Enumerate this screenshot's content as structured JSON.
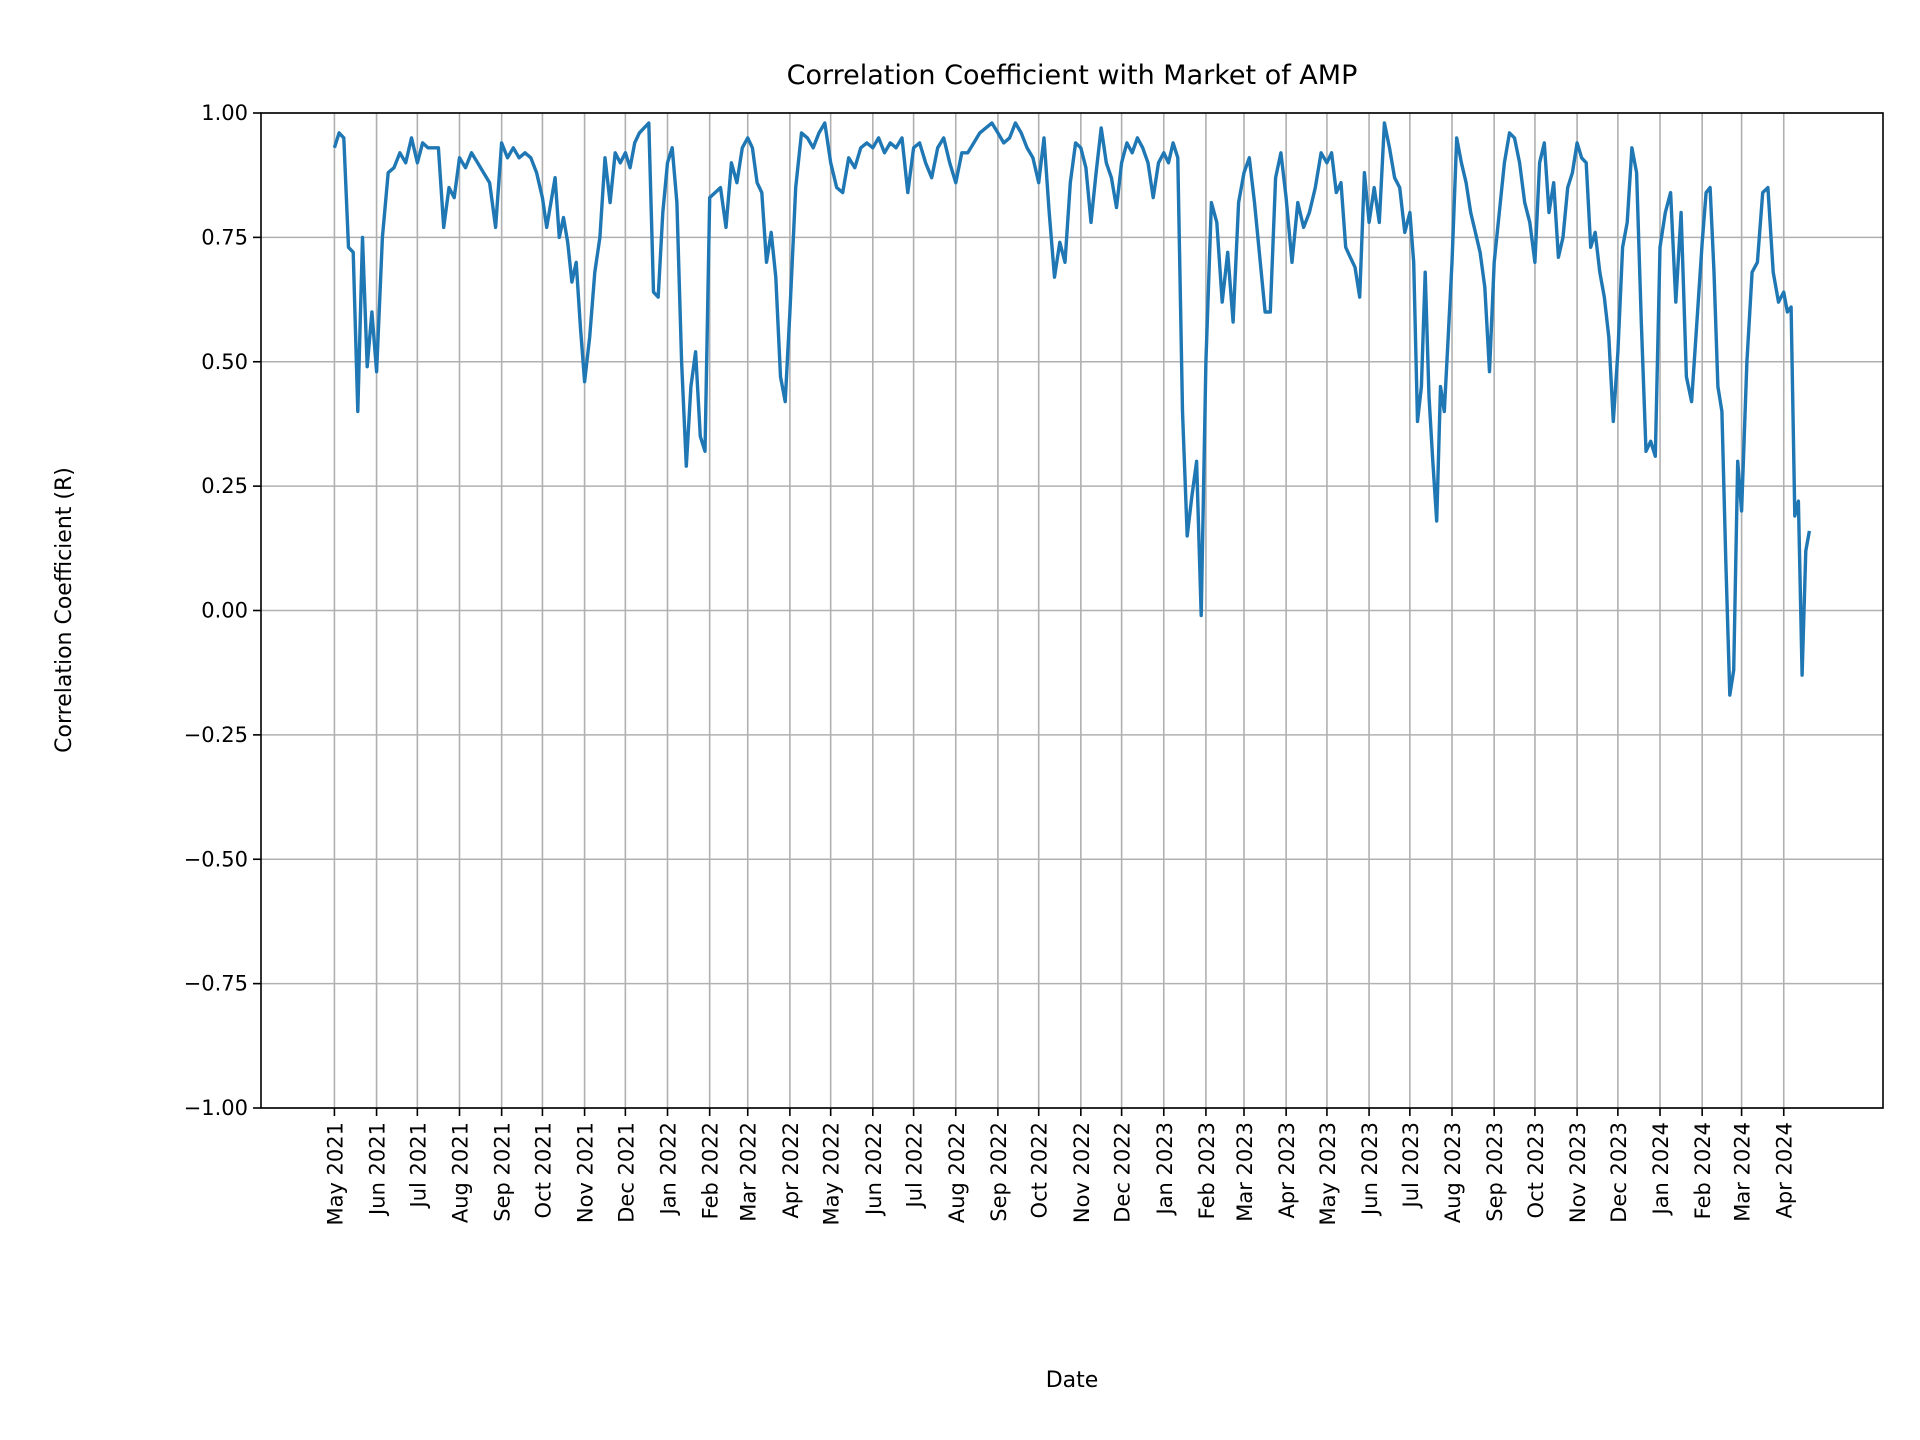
{
  "chart_data": {
    "type": "line",
    "title": "Correlation Coefficient with Market of AMP",
    "xlabel": "Date",
    "ylabel": "Correlation Coefficient (R)",
    "ylim": [
      -1.0,
      1.0
    ],
    "xlim": [
      "2021-03-08",
      "2024-06-13"
    ],
    "grid": true,
    "line_color": "#1f77b4",
    "yticks": [
      "1.00",
      "0.75",
      "0.50",
      "0.25",
      "0.00",
      "−0.25",
      "−0.50",
      "−0.75",
      "−1.00"
    ],
    "ytick_values": [
      1.0,
      0.75,
      0.5,
      0.25,
      0.0,
      -0.25,
      -0.5,
      -0.75,
      -1.0
    ],
    "xticks": [
      {
        "date": "2021-05-01",
        "label": "May 2021"
      },
      {
        "date": "2021-06-01",
        "label": "Jun 2021"
      },
      {
        "date": "2021-07-01",
        "label": "Jul 2021"
      },
      {
        "date": "2021-08-01",
        "label": "Aug 2021"
      },
      {
        "date": "2021-09-01",
        "label": "Sep 2021"
      },
      {
        "date": "2021-10-01",
        "label": "Oct 2021"
      },
      {
        "date": "2021-11-01",
        "label": "Nov 2021"
      },
      {
        "date": "2021-12-01",
        "label": "Dec 2021"
      },
      {
        "date": "2022-01-01",
        "label": "Jan 2022"
      },
      {
        "date": "2022-02-01",
        "label": "Feb 2022"
      },
      {
        "date": "2022-03-01",
        "label": "Mar 2022"
      },
      {
        "date": "2022-04-01",
        "label": "Apr 2022"
      },
      {
        "date": "2022-05-01",
        "label": "May 2022"
      },
      {
        "date": "2022-06-01",
        "label": "Jun 2022"
      },
      {
        "date": "2022-07-01",
        "label": "Jul 2022"
      },
      {
        "date": "2022-08-01",
        "label": "Aug 2022"
      },
      {
        "date": "2022-09-01",
        "label": "Sep 2022"
      },
      {
        "date": "2022-10-01",
        "label": "Oct 2022"
      },
      {
        "date": "2022-11-01",
        "label": "Nov 2022"
      },
      {
        "date": "2022-12-01",
        "label": "Dec 2022"
      },
      {
        "date": "2023-01-01",
        "label": "Jan 2023"
      },
      {
        "date": "2023-02-01",
        "label": "Feb 2023"
      },
      {
        "date": "2023-03-01",
        "label": "Mar 2023"
      },
      {
        "date": "2023-04-01",
        "label": "Apr 2023"
      },
      {
        "date": "2023-05-01",
        "label": "May 2023"
      },
      {
        "date": "2023-06-01",
        "label": "Jun 2023"
      },
      {
        "date": "2023-07-01",
        "label": "Jul 2023"
      },
      {
        "date": "2023-08-01",
        "label": "Aug 2023"
      },
      {
        "date": "2023-09-01",
        "label": "Sep 2023"
      },
      {
        "date": "2023-10-01",
        "label": "Oct 2023"
      },
      {
        "date": "2023-11-01",
        "label": "Nov 2023"
      },
      {
        "date": "2023-12-01",
        "label": "Dec 2023"
      },
      {
        "date": "2024-01-01",
        "label": "Jan 2024"
      },
      {
        "date": "2024-02-01",
        "label": "Feb 2024"
      },
      {
        "date": "2024-03-01",
        "label": "Mar 2024"
      },
      {
        "date": "2024-04-01",
        "label": "Apr 2024"
      }
    ],
    "values_by_month": {
      "2021-05": [
        0.93,
        0.96,
        0.95,
        0.73,
        0.72,
        0.4,
        0.75,
        0.49,
        0.6
      ],
      "2021-06": [
        0.48,
        0.75,
        0.88,
        0.89,
        0.92,
        0.9,
        0.95
      ],
      "2021-07": [
        0.9,
        0.94,
        0.93,
        0.93,
        0.93,
        0.77,
        0.85,
        0.83
      ],
      "2021-08": [
        0.91,
        0.89,
        0.92,
        0.9,
        0.88,
        0.86,
        0.77
      ],
      "2021-09": [
        0.94,
        0.91,
        0.93,
        0.91,
        0.92,
        0.91,
        0.88
      ],
      "2021-10": [
        0.83,
        0.77,
        0.82,
        0.87,
        0.75,
        0.79,
        0.74,
        0.66,
        0.7,
        0.57
      ],
      "2021-11": [
        0.46,
        0.55,
        0.68,
        0.75,
        0.91,
        0.82,
        0.92,
        0.9
      ],
      "2021-12": [
        0.92,
        0.89,
        0.94,
        0.96,
        0.97,
        0.98,
        0.64,
        0.63,
        0.8
      ],
      "2022-01": [
        0.9,
        0.93,
        0.82,
        0.5,
        0.29,
        0.45,
        0.52,
        0.35,
        0.32
      ],
      "2022-02": [
        0.83,
        0.84,
        0.85,
        0.77,
        0.9,
        0.86,
        0.93
      ],
      "2022-03": [
        0.95,
        0.93,
        0.86,
        0.84,
        0.7,
        0.76,
        0.67,
        0.47,
        0.42
      ],
      "2022-04": [
        0.6,
        0.85,
        0.96,
        0.95,
        0.93,
        0.96,
        0.98
      ],
      "2022-05": [
        0.9,
        0.85,
        0.84,
        0.91,
        0.89,
        0.93,
        0.94
      ],
      "2022-06": [
        0.93,
        0.95,
        0.92,
        0.94,
        0.93,
        0.95,
        0.84
      ],
      "2022-07": [
        0.93,
        0.94,
        0.9,
        0.87,
        0.93,
        0.95,
        0.9
      ],
      "2022-08": [
        0.86,
        0.92,
        0.92,
        0.94,
        0.96,
        0.97,
        0.98
      ],
      "2022-09": [
        0.96,
        0.94,
        0.95,
        0.98,
        0.96,
        0.93,
        0.91
      ],
      "2022-10": [
        0.86,
        0.95,
        0.8,
        0.67,
        0.74,
        0.7,
        0.86,
        0.94
      ],
      "2022-11": [
        0.93,
        0.89,
        0.78,
        0.88,
        0.97,
        0.9,
        0.87,
        0.81
      ],
      "2022-12": [
        0.9,
        0.94,
        0.92,
        0.95,
        0.93,
        0.9,
        0.83,
        0.9
      ],
      "2023-01": [
        0.92,
        0.9,
        0.94,
        0.91,
        0.4,
        0.15,
        0.23,
        0.3,
        -0.01
      ],
      "2023-02": [
        0.5,
        0.82,
        0.78,
        0.62,
        0.72,
        0.58,
        0.82
      ],
      "2023-03": [
        0.88,
        0.91,
        0.82,
        0.71,
        0.6,
        0.6,
        0.87,
        0.92
      ],
      "2023-04": [
        0.83,
        0.7,
        0.82,
        0.77,
        0.8,
        0.85,
        0.92
      ],
      "2023-05": [
        0.9,
        0.92,
        0.84,
        0.86,
        0.73,
        0.71,
        0.69,
        0.63,
        0.88
      ],
      "2023-06": [
        0.78,
        0.85,
        0.78,
        0.98,
        0.93,
        0.87,
        0.85,
        0.76
      ],
      "2023-07": [
        0.8,
        0.7,
        0.38,
        0.45,
        0.68,
        0.43,
        0.3,
        0.18,
        0.45,
        0.4,
        0.55
      ],
      "2023-08": [
        0.7,
        0.95,
        0.9,
        0.86,
        0.8,
        0.76,
        0.72,
        0.65,
        0.48
      ],
      "2023-09": [
        0.7,
        0.8,
        0.9,
        0.96,
        0.95,
        0.9,
        0.82,
        0.78
      ],
      "2023-10": [
        0.7,
        0.9,
        0.94,
        0.8,
        0.86,
        0.71,
        0.75,
        0.85,
        0.88
      ],
      "2023-11": [
        0.94,
        0.91,
        0.9,
        0.73,
        0.76,
        0.68,
        0.63,
        0.55,
        0.38
      ],
      "2023-12": [
        0.52,
        0.73,
        0.78,
        0.93,
        0.88,
        0.58,
        0.32,
        0.34,
        0.31
      ],
      "2024-01": [
        0.73,
        0.8,
        0.84,
        0.62,
        0.8,
        0.47,
        0.42,
        0.58
      ],
      "2024-02": [
        0.74,
        0.84,
        0.85,
        0.68,
        0.45,
        0.4,
        0.1,
        -0.17,
        -0.12,
        0.3
      ],
      "2024-03": [
        0.2,
        0.5,
        0.68,
        0.7,
        0.84,
        0.85,
        0.68,
        0.62
      ],
      "2024-04": [
        0.64,
        0.6,
        0.61,
        0.19,
        0.22,
        -0.13,
        0.12,
        0.16
      ]
    }
  }
}
